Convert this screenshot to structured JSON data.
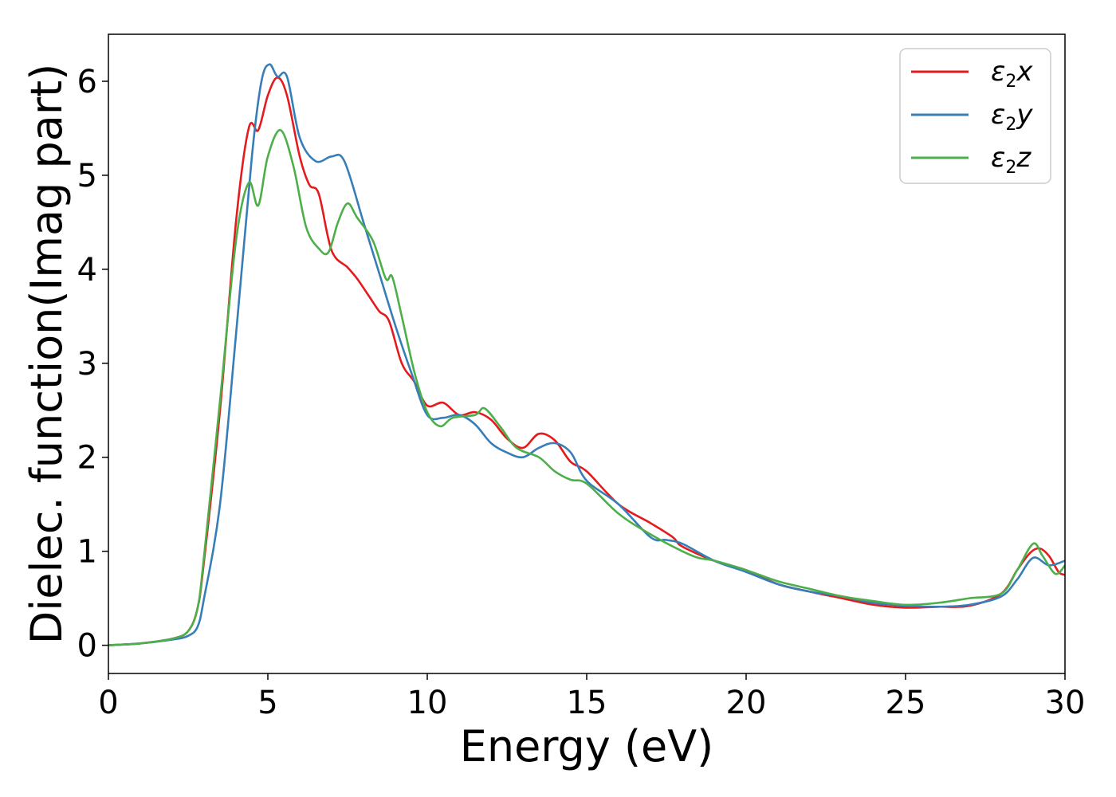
{
  "chart_data": {
    "type": "line",
    "title": "",
    "xlabel": "Energy (eV)",
    "ylabel": "Dielec. function(Imag part)",
    "xlim": [
      0,
      30
    ],
    "ylim": [
      -0.3,
      6.5
    ],
    "xticks": [
      "0",
      "5",
      "10",
      "15",
      "20",
      "25",
      "30"
    ],
    "yticks": [
      "0",
      "1",
      "2",
      "3",
      "4",
      "5",
      "6"
    ],
    "grid": false,
    "legend_position": "top-right",
    "series": [
      {
        "name": "ε₂x",
        "legend": {
          "base": "ε",
          "sub": "2",
          "axis": "x"
        },
        "color": "#e41a1c",
        "points": [
          [
            0,
            0
          ],
          [
            1,
            0.02
          ],
          [
            2,
            0.07
          ],
          [
            2.5,
            0.15
          ],
          [
            2.8,
            0.4
          ],
          [
            3,
            0.9
          ],
          [
            3.5,
            2.5
          ],
          [
            4,
            4.5
          ],
          [
            4.4,
            5.5
          ],
          [
            4.7,
            5.48
          ],
          [
            5,
            5.85
          ],
          [
            5.3,
            6.04
          ],
          [
            5.6,
            5.85
          ],
          [
            6,
            5.2
          ],
          [
            6.3,
            4.9
          ],
          [
            6.6,
            4.8
          ],
          [
            7,
            4.2
          ],
          [
            7.5,
            4.02
          ],
          [
            7.8,
            3.9
          ],
          [
            8.2,
            3.7
          ],
          [
            8.5,
            3.55
          ],
          [
            8.8,
            3.45
          ],
          [
            9.2,
            3.0
          ],
          [
            9.6,
            2.8
          ],
          [
            10,
            2.55
          ],
          [
            10.5,
            2.58
          ],
          [
            11,
            2.45
          ],
          [
            11.5,
            2.48
          ],
          [
            12,
            2.4
          ],
          [
            12.5,
            2.2
          ],
          [
            13,
            2.1
          ],
          [
            13.5,
            2.25
          ],
          [
            14,
            2.18
          ],
          [
            14.5,
            1.95
          ],
          [
            15,
            1.85
          ],
          [
            16,
            1.5
          ],
          [
            17,
            1.3
          ],
          [
            17.7,
            1.15
          ],
          [
            18,
            1.05
          ],
          [
            19,
            0.9
          ],
          [
            20,
            0.8
          ],
          [
            21,
            0.65
          ],
          [
            22,
            0.57
          ],
          [
            23,
            0.5
          ],
          [
            24,
            0.43
          ],
          [
            25,
            0.4
          ],
          [
            26,
            0.41
          ],
          [
            27,
            0.42
          ],
          [
            28,
            0.55
          ],
          [
            28.5,
            0.8
          ],
          [
            28.9,
            0.98
          ],
          [
            29.2,
            1.03
          ],
          [
            29.5,
            0.95
          ],
          [
            29.8,
            0.78
          ],
          [
            30,
            0.75
          ]
        ]
      },
      {
        "name": "ε₂y",
        "legend": {
          "base": "ε",
          "sub": "2",
          "axis": "y"
        },
        "color": "#377eb8",
        "points": [
          [
            0,
            0
          ],
          [
            1,
            0.02
          ],
          [
            2,
            0.06
          ],
          [
            2.5,
            0.1
          ],
          [
            2.8,
            0.2
          ],
          [
            3,
            0.5
          ],
          [
            3.5,
            1.5
          ],
          [
            4,
            3.3
          ],
          [
            4.5,
            5.2
          ],
          [
            4.8,
            6.0
          ],
          [
            5.05,
            6.18
          ],
          [
            5.3,
            6.05
          ],
          [
            5.6,
            6.05
          ],
          [
            6,
            5.4
          ],
          [
            6.5,
            5.15
          ],
          [
            7,
            5.2
          ],
          [
            7.4,
            5.15
          ],
          [
            8,
            4.5
          ],
          [
            8.5,
            3.95
          ],
          [
            9,
            3.4
          ],
          [
            9.5,
            2.9
          ],
          [
            10,
            2.45
          ],
          [
            10.5,
            2.42
          ],
          [
            11,
            2.45
          ],
          [
            11.5,
            2.35
          ],
          [
            12,
            2.15
          ],
          [
            12.5,
            2.05
          ],
          [
            13,
            2.0
          ],
          [
            13.5,
            2.1
          ],
          [
            14,
            2.15
          ],
          [
            14.5,
            2.05
          ],
          [
            15,
            1.75
          ],
          [
            16,
            1.5
          ],
          [
            17,
            1.15
          ],
          [
            17.5,
            1.12
          ],
          [
            18,
            1.08
          ],
          [
            19,
            0.9
          ],
          [
            20,
            0.78
          ],
          [
            21,
            0.65
          ],
          [
            22,
            0.57
          ],
          [
            23,
            0.52
          ],
          [
            24,
            0.45
          ],
          [
            25,
            0.42
          ],
          [
            26,
            0.41
          ],
          [
            27,
            0.43
          ],
          [
            28,
            0.52
          ],
          [
            28.5,
            0.7
          ],
          [
            29,
            0.93
          ],
          [
            29.5,
            0.85
          ],
          [
            30,
            0.9
          ]
        ]
      },
      {
        "name": "ε₂z",
        "legend": {
          "base": "ε",
          "sub": "2",
          "axis": "z"
        },
        "color": "#4daf4a",
        "points": [
          [
            0,
            0
          ],
          [
            1,
            0.02
          ],
          [
            2,
            0.07
          ],
          [
            2.5,
            0.15
          ],
          [
            2.8,
            0.4
          ],
          [
            3,
            0.95
          ],
          [
            3.5,
            2.6
          ],
          [
            4,
            4.3
          ],
          [
            4.4,
            4.92
          ],
          [
            4.7,
            4.68
          ],
          [
            5,
            5.2
          ],
          [
            5.4,
            5.48
          ],
          [
            5.8,
            5.1
          ],
          [
            6.2,
            4.45
          ],
          [
            6.6,
            4.22
          ],
          [
            6.9,
            4.18
          ],
          [
            7.2,
            4.5
          ],
          [
            7.5,
            4.7
          ],
          [
            7.8,
            4.55
          ],
          [
            8.3,
            4.3
          ],
          [
            8.7,
            3.9
          ],
          [
            8.9,
            3.92
          ],
          [
            9.2,
            3.5
          ],
          [
            9.6,
            2.9
          ],
          [
            10,
            2.48
          ],
          [
            10.4,
            2.33
          ],
          [
            10.8,
            2.42
          ],
          [
            11.5,
            2.45
          ],
          [
            11.8,
            2.52
          ],
          [
            12.3,
            2.32
          ],
          [
            12.8,
            2.1
          ],
          [
            13.5,
            2.0
          ],
          [
            14,
            1.85
          ],
          [
            14.5,
            1.76
          ],
          [
            15,
            1.72
          ],
          [
            16,
            1.4
          ],
          [
            17,
            1.18
          ],
          [
            18,
            1.0
          ],
          [
            18.5,
            0.93
          ],
          [
            19,
            0.9
          ],
          [
            20,
            0.8
          ],
          [
            21,
            0.68
          ],
          [
            22,
            0.6
          ],
          [
            23,
            0.52
          ],
          [
            24,
            0.47
          ],
          [
            25,
            0.43
          ],
          [
            26,
            0.45
          ],
          [
            27,
            0.5
          ],
          [
            28,
            0.55
          ],
          [
            28.5,
            0.8
          ],
          [
            29,
            1.08
          ],
          [
            29.3,
            0.95
          ],
          [
            29.7,
            0.76
          ],
          [
            30,
            0.85
          ]
        ]
      }
    ]
  }
}
